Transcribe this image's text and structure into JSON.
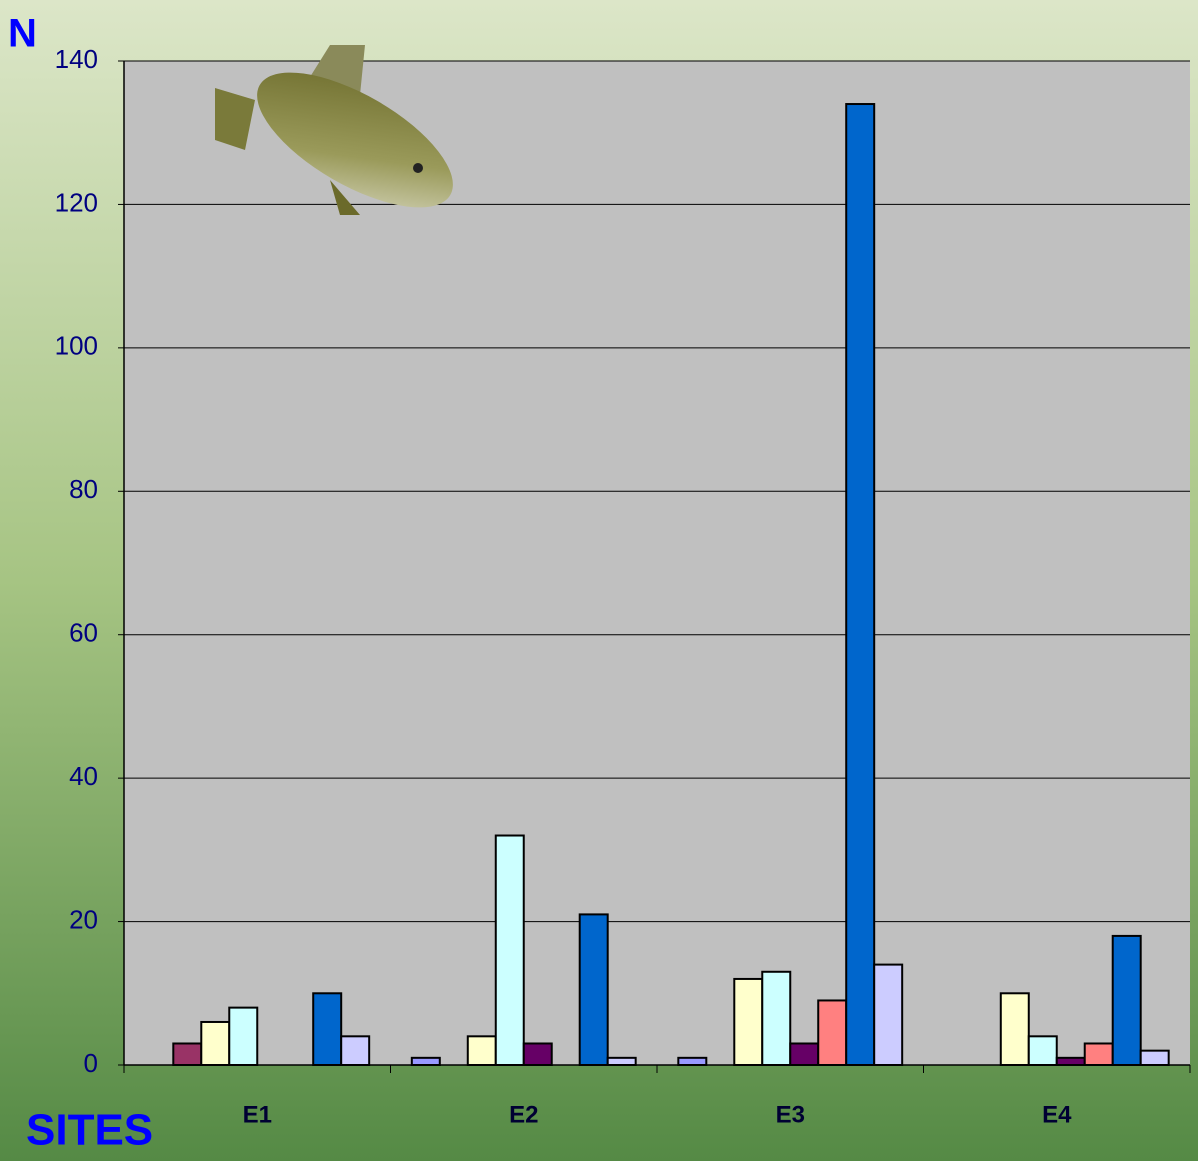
{
  "chart_data": {
    "type": "bar",
    "y_label": "N",
    "x_label": "SITES",
    "categories": [
      "E1",
      "E2",
      "E3",
      "E4"
    ],
    "series": [
      {
        "color": "#9999ff",
        "values": [
          0,
          1,
          1,
          0
        ]
      },
      {
        "color": "#993366",
        "values": [
          3,
          0,
          0,
          0
        ]
      },
      {
        "color": "#ffffcc",
        "values": [
          6,
          4,
          12,
          10
        ]
      },
      {
        "color": "#ccffff",
        "values": [
          8,
          32,
          13,
          4
        ]
      },
      {
        "color": "#660066",
        "values": [
          0,
          3,
          3,
          1
        ]
      },
      {
        "color": "#ff8080",
        "values": [
          0,
          0,
          9,
          3
        ]
      },
      {
        "color": "#0066cc",
        "values": [
          10,
          21,
          134,
          18
        ]
      },
      {
        "color": "#ccccff",
        "values": [
          4,
          1,
          14,
          2
        ]
      }
    ],
    "ylim": [
      0,
      140
    ],
    "yticks": [
      0,
      20,
      40,
      60,
      80,
      100,
      120,
      140
    ],
    "grid": true
  }
}
